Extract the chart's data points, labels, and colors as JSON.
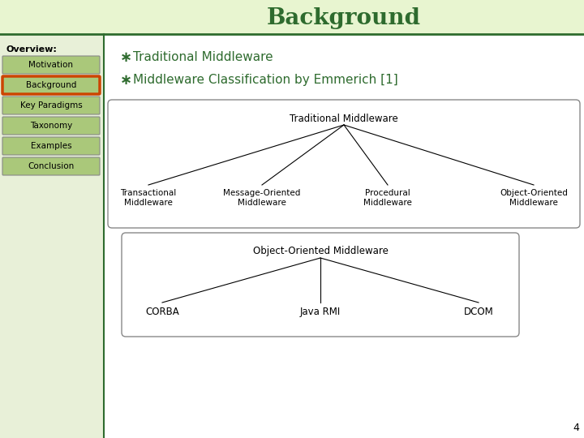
{
  "title": "Background",
  "title_color": "#2E6B2E",
  "title_bg": "#e8f5d0",
  "left_panel_bg": "#e8f0d8",
  "main_bg": "#ffffff",
  "overview_label": "Overview:",
  "nav_items": [
    "Motivation",
    "Background",
    "Key Paradigms",
    "Taxonomy",
    "Examples",
    "Conclusion"
  ],
  "nav_active": "Background",
  "nav_active_border": "#cc4400",
  "nav_bg_gradient_top": "#b8d898",
  "nav_bg_gradient_bot": "#a0c870",
  "nav_bg": "#aac87a",
  "bullet_color": "#2E6B2E",
  "bullet_items": [
    "Traditional Middleware",
    "Middleware Classification by Emmerich [1]"
  ],
  "bullet_text_color": "#2E6B2E",
  "bullet_fontsize": 11,
  "tree1_title": "Traditional Middleware",
  "tree1_children": [
    "Transactional\nMiddleware",
    "Message-Oriented\nMiddleware",
    "Procedural\nMiddleware",
    "Object-Oriented\nMiddleware"
  ],
  "tree2_title": "Object-Oriented Middleware",
  "tree2_children": [
    "CORBA",
    "Java RMI",
    "DCOM"
  ],
  "tree_text_color": "#000000",
  "tree_box_bg": "#ffffff",
  "tree_box_border": "#888888",
  "page_number": "4",
  "header_border_color": "#2E6B2E",
  "left_border_color": "#2E6B2E"
}
